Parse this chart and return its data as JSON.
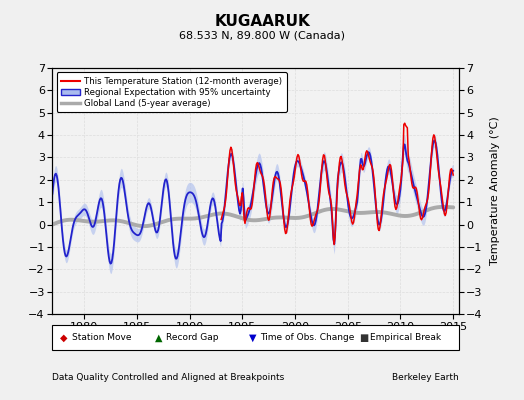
{
  "title": "KUGAARUK",
  "subtitle": "68.533 N, 89.800 W (Canada)",
  "ylabel": "Temperature Anomaly (°C)",
  "xlabel_bottom": "Data Quality Controlled and Aligned at Breakpoints",
  "xlabel_right": "Berkeley Earth",
  "ylim": [
    -4,
    7
  ],
  "xlim": [
    1977.0,
    2015.5
  ],
  "yticks": [
    -4,
    -3,
    -2,
    -1,
    0,
    1,
    2,
    3,
    4,
    5,
    6,
    7
  ],
  "xticks": [
    1980,
    1985,
    1990,
    1995,
    2000,
    2005,
    2010,
    2015
  ],
  "red_color": "#EE0000",
  "blue_color": "#2222CC",
  "blue_fill": "#AABBEE",
  "gray_color": "#AAAAAA",
  "background_color": "#F2F2F2",
  "fig_background": "#F0F0F0",
  "grid_color": "#DDDDDD",
  "legend_entries": [
    "This Temperature Station (12-month average)",
    "Regional Expectation with 95% uncertainty",
    "Global Land (5-year average)"
  ],
  "bottom_legend": [
    {
      "marker": "D",
      "color": "#CC0000",
      "label": "Station Move"
    },
    {
      "marker": "^",
      "color": "#006600",
      "label": "Record Gap"
    },
    {
      "marker": "v",
      "color": "#0000CC",
      "label": "Time of Obs. Change"
    },
    {
      "marker": "s",
      "color": "#333333",
      "label": "Empirical Break"
    }
  ]
}
